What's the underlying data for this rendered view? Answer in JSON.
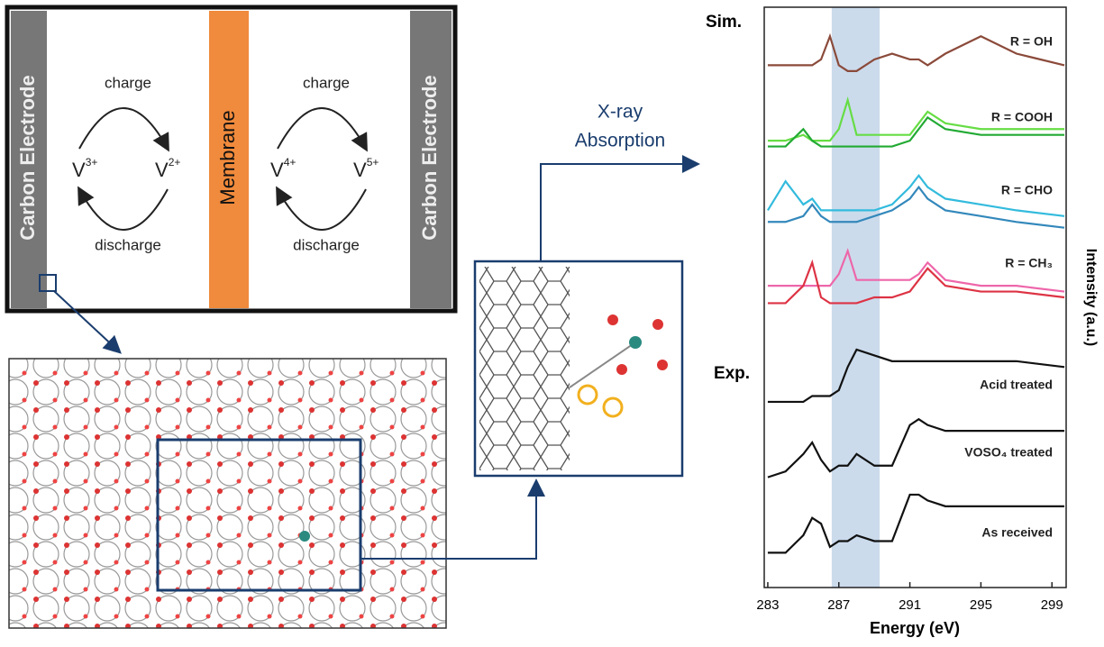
{
  "battery": {
    "electrodes": [
      "Carbon Electrode",
      "Carbon Electrode"
    ],
    "membrane": "Membrane",
    "cells": [
      {
        "charge": "charge",
        "discharge": "discharge",
        "ions": [
          {
            "base": "V",
            "charge": "3+"
          },
          {
            "base": "V",
            "charge": "2+"
          }
        ]
      },
      {
        "charge": "charge",
        "discharge": "discharge",
        "ions": [
          {
            "base": "V",
            "charge": "4+"
          },
          {
            "base": "V",
            "charge": "5+"
          }
        ]
      }
    ]
  },
  "xray_label": [
    "X-ray",
    "Absorption"
  ],
  "chart_data": {
    "type": "line",
    "x_label": "Energy (eV)",
    "y_label": "Intensity (a.u.)",
    "sim_label": "Sim.",
    "exp_label": "Exp.",
    "curve_labels": [
      "R = OH",
      "R = COOH",
      "R = CHO",
      "R = CH₃",
      "Acid treated",
      "VOSO₄ treated",
      "As received"
    ],
    "x": [
      283,
      284,
      285,
      285.5,
      286,
      286.5,
      287,
      287.5,
      288,
      289,
      290,
      291,
      291.5,
      292,
      293,
      295,
      297,
      299.7
    ],
    "xlim": [
      282.8,
      299.8
    ],
    "xticks": [
      283,
      287,
      291,
      295,
      299
    ],
    "ylim": [
      0,
      100
    ],
    "highlight_band": [
      286.6,
      289.3
    ],
    "series": [
      {
        "color": "#8b4a3a",
        "values": [
          90,
          90,
          90,
          90,
          91,
          95,
          90,
          89,
          89,
          91,
          92,
          91,
          91,
          90,
          92,
          95,
          92,
          90
        ]
      },
      {
        "color": "#66dd44",
        "values": [
          77,
          77,
          78,
          77,
          77,
          77,
          79,
          84,
          78,
          78,
          78,
          78,
          80,
          82,
          80,
          79,
          79,
          79
        ]
      },
      {
        "color": "#22aa33",
        "values": [
          76,
          76,
          79,
          77,
          76,
          76,
          76,
          76,
          76,
          76,
          76,
          77,
          79,
          81,
          79,
          78,
          78,
          78
        ]
      },
      {
        "color": "#33bbdd",
        "values": [
          65,
          70,
          66,
          67,
          65,
          65,
          65,
          65,
          65,
          65,
          66,
          69,
          71,
          69,
          67,
          66,
          65,
          64
        ]
      },
      {
        "color": "#3388bb",
        "values": [
          63,
          63,
          64,
          66,
          64,
          63,
          63,
          63,
          63,
          64,
          65,
          67,
          69,
          67,
          65,
          64,
          63,
          62
        ]
      },
      {
        "color": "#ee66aa",
        "values": [
          52,
          52,
          52,
          52,
          52,
          52,
          54,
          58,
          53,
          53,
          53,
          53,
          54,
          56,
          53,
          52,
          52,
          51
        ]
      },
      {
        "color": "#dd3344",
        "values": [
          49,
          49,
          52,
          56,
          50,
          49,
          49,
          49,
          49,
          50,
          50,
          51,
          53,
          55,
          52,
          51,
          51,
          50
        ]
      },
      {
        "color": "#111111",
        "values": [
          32,
          32,
          32,
          33,
          33,
          33,
          34,
          38,
          41,
          40,
          39,
          39,
          39,
          39,
          39,
          39,
          39,
          38
        ]
      },
      {
        "color": "#111111",
        "values": [
          19,
          20,
          23,
          25,
          22,
          20,
          21,
          21,
          23,
          21,
          21,
          28,
          29,
          28,
          27,
          27,
          27,
          27
        ]
      },
      {
        "color": "#111111",
        "values": [
          6,
          6,
          9,
          12,
          11,
          7,
          8,
          8,
          9,
          8,
          8,
          16,
          16,
          15,
          14,
          14,
          14,
          14
        ]
      }
    ]
  }
}
